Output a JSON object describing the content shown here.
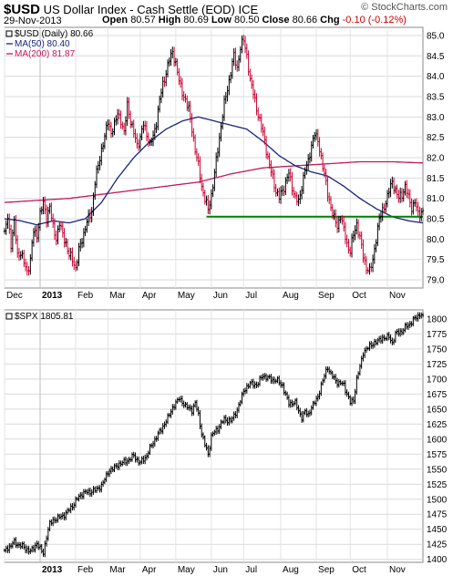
{
  "header": {
    "symbol": "$USD",
    "description": "US Dollar Index - Cash Settle (EOD) ICE",
    "brand": "© StockCharts.com",
    "date": "29-Nov-2013",
    "open_label": "Open",
    "open": "80.57",
    "high_label": "High",
    "high": "80.69",
    "low_label": "Low",
    "low": "80.50",
    "close_label": "Close",
    "close": "80.66",
    "chg_label": "Chg",
    "chg": "-0.10 (-0.12%)"
  },
  "chart_data": [
    {
      "type": "line",
      "legend": {
        "price": "$USD (Daily) 80.66",
        "ma50": "MA(50) 80.40",
        "ma200": "MA(200) 81.87"
      },
      "colors": {
        "price": "#000000",
        "price_down": "#cc0033",
        "ma50": "#1a237e",
        "ma200": "#c2185b",
        "support": "#008000"
      },
      "ylim": [
        78.8,
        85.2
      ],
      "yticks": [
        "85.0",
        "84.5",
        "84.0",
        "83.5",
        "83.0",
        "82.5",
        "82.0",
        "81.5",
        "81.0",
        "80.5",
        "80.0",
        "79.5",
        "79.0"
      ],
      "xlabels": [
        "Dec",
        "2013",
        "Feb",
        "Mar",
        "Apr",
        "May",
        "Jun",
        "Jul",
        "Aug",
        "Sep",
        "Oct",
        "Nov"
      ],
      "month_ticks": [
        0,
        22,
        44,
        64,
        84,
        106,
        128,
        148,
        171,
        193,
        214,
        237
      ],
      "support_level": 80.55,
      "support_range": [
        125,
        259
      ],
      "anchors": [
        [
          0,
          80.2
        ],
        [
          2,
          80.5
        ],
        [
          4,
          79.9
        ],
        [
          6,
          80.4
        ],
        [
          8,
          79.6
        ],
        [
          10,
          79.7
        ],
        [
          12,
          79.4
        ],
        [
          14,
          79.2
        ],
        [
          16,
          79.5
        ],
        [
          18,
          80.2
        ],
        [
          20,
          80.1
        ],
        [
          22,
          80.6
        ],
        [
          24,
          80.9
        ],
        [
          26,
          80.5
        ],
        [
          28,
          80.8
        ],
        [
          30,
          80.3
        ],
        [
          32,
          80.0
        ],
        [
          34,
          80.4
        ],
        [
          36,
          80.1
        ],
        [
          38,
          79.9
        ],
        [
          40,
          79.6
        ],
        [
          42,
          79.5
        ],
        [
          44,
          79.3
        ],
        [
          46,
          79.7
        ],
        [
          48,
          80.0
        ],
        [
          50,
          80.3
        ],
        [
          52,
          80.5
        ],
        [
          54,
          80.7
        ],
        [
          56,
          81.4
        ],
        [
          58,
          81.8
        ],
        [
          60,
          82.2
        ],
        [
          62,
          82.5
        ],
        [
          64,
          82.9
        ],
        [
          66,
          82.6
        ],
        [
          68,
          82.8
        ],
        [
          70,
          83.1
        ],
        [
          72,
          82.9
        ],
        [
          74,
          82.6
        ],
        [
          76,
          83.3
        ],
        [
          78,
          82.9
        ],
        [
          80,
          82.6
        ],
        [
          82,
          82.3
        ],
        [
          84,
          82.5
        ],
        [
          86,
          82.8
        ],
        [
          88,
          82.6
        ],
        [
          90,
          82.3
        ],
        [
          92,
          82.5
        ],
        [
          94,
          82.9
        ],
        [
          96,
          83.4
        ],
        [
          98,
          83.8
        ],
        [
          100,
          84.1
        ],
        [
          102,
          84.4
        ],
        [
          104,
          84.6
        ],
        [
          106,
          84.3
        ],
        [
          108,
          83.9
        ],
        [
          110,
          83.6
        ],
        [
          112,
          83.4
        ],
        [
          114,
          83.2
        ],
        [
          116,
          82.7
        ],
        [
          118,
          82.2
        ],
        [
          120,
          81.8
        ],
        [
          122,
          81.3
        ],
        [
          124,
          81.0
        ],
        [
          126,
          80.7
        ],
        [
          128,
          81.1
        ],
        [
          130,
          81.6
        ],
        [
          132,
          82.2
        ],
        [
          134,
          82.8
        ],
        [
          136,
          83.3
        ],
        [
          138,
          83.7
        ],
        [
          140,
          84.1
        ],
        [
          142,
          84.5
        ],
        [
          144,
          84.2
        ],
        [
          146,
          84.7
        ],
        [
          148,
          84.9
        ],
        [
          150,
          84.5
        ],
        [
          152,
          83.9
        ],
        [
          154,
          83.6
        ],
        [
          156,
          83.2
        ],
        [
          158,
          82.9
        ],
        [
          160,
          82.6
        ],
        [
          162,
          82.2
        ],
        [
          164,
          81.8
        ],
        [
          166,
          81.5
        ],
        [
          168,
          81.2
        ],
        [
          170,
          81.0
        ],
        [
          172,
          81.2
        ],
        [
          174,
          81.4
        ],
        [
          176,
          81.6
        ],
        [
          178,
          81.3
        ],
        [
          180,
          81.0
        ],
        [
          182,
          80.9
        ],
        [
          184,
          81.3
        ],
        [
          186,
          81.7
        ],
        [
          188,
          81.9
        ],
        [
          190,
          82.3
        ],
        [
          192,
          82.6
        ],
        [
          194,
          82.4
        ],
        [
          196,
          82.0
        ],
        [
          198,
          81.6
        ],
        [
          200,
          81.1
        ],
        [
          202,
          80.8
        ],
        [
          204,
          80.5
        ],
        [
          206,
          80.3
        ],
        [
          208,
          80.6
        ],
        [
          210,
          80.2
        ],
        [
          212,
          79.9
        ],
        [
          214,
          79.7
        ],
        [
          216,
          80.1
        ],
        [
          218,
          80.4
        ],
        [
          220,
          80.0
        ],
        [
          222,
          79.6
        ],
        [
          224,
          79.3
        ],
        [
          226,
          79.2
        ],
        [
          228,
          79.5
        ],
        [
          230,
          80.0
        ],
        [
          232,
          80.5
        ],
        [
          234,
          80.7
        ],
        [
          236,
          80.9
        ],
        [
          238,
          81.2
        ],
        [
          240,
          81.4
        ],
        [
          242,
          81.2
        ],
        [
          244,
          81.0
        ],
        [
          246,
          81.1
        ],
        [
          248,
          81.3
        ],
        [
          250,
          81.0
        ],
        [
          252,
          80.8
        ],
        [
          254,
          80.9
        ],
        [
          256,
          80.6
        ],
        [
          258,
          80.7
        ]
      ],
      "ma50_anchors": [
        [
          0,
          80.5
        ],
        [
          10,
          80.45
        ],
        [
          20,
          80.35
        ],
        [
          30,
          80.45
        ],
        [
          40,
          80.4
        ],
        [
          50,
          80.5
        ],
        [
          60,
          80.9
        ],
        [
          70,
          81.5
        ],
        [
          80,
          82.0
        ],
        [
          90,
          82.4
        ],
        [
          100,
          82.7
        ],
        [
          110,
          82.9
        ],
        [
          120,
          83.0
        ],
        [
          130,
          82.9
        ],
        [
          140,
          82.8
        ],
        [
          150,
          82.7
        ],
        [
          160,
          82.4
        ],
        [
          170,
          82.05
        ],
        [
          180,
          81.8
        ],
        [
          190,
          81.65
        ],
        [
          200,
          81.55
        ],
        [
          210,
          81.3
        ],
        [
          220,
          81.0
        ],
        [
          230,
          80.75
        ],
        [
          240,
          80.55
        ],
        [
          250,
          80.45
        ],
        [
          259,
          80.4
        ]
      ],
      "ma200_anchors": [
        [
          0,
          80.9
        ],
        [
          20,
          80.95
        ],
        [
          40,
          81.0
        ],
        [
          60,
          81.1
        ],
        [
          80,
          81.2
        ],
        [
          100,
          81.3
        ],
        [
          120,
          81.4
        ],
        [
          140,
          81.6
        ],
        [
          160,
          81.75
        ],
        [
          180,
          81.8
        ],
        [
          200,
          81.85
        ],
        [
          220,
          81.9
        ],
        [
          240,
          81.9
        ],
        [
          259,
          81.87
        ]
      ]
    },
    {
      "type": "line",
      "legend": {
        "price": "$SPX 1805.81"
      },
      "colors": {
        "price": "#000000",
        "price_down": "#000000"
      },
      "ylim": [
        1395,
        1815
      ],
      "yticks": [
        "1800",
        "1775",
        "1750",
        "1725",
        "1700",
        "1675",
        "1650",
        "1625",
        "1600",
        "1575",
        "1550",
        "1525",
        "1500",
        "1475",
        "1450",
        "1425",
        "1400"
      ],
      "xlabels": [
        "2013",
        "Feb",
        "Mar",
        "Apr",
        "May",
        "Jun",
        "Jul",
        "Aug",
        "Sep",
        "Oct",
        "Nov"
      ],
      "anchors": [
        [
          0,
          1415
        ],
        [
          6,
          1428
        ],
        [
          12,
          1420
        ],
        [
          16,
          1413
        ],
        [
          20,
          1426
        ],
        [
          22,
          1418
        ],
        [
          24,
          1410
        ],
        [
          26,
          1438
        ],
        [
          28,
          1460
        ],
        [
          32,
          1468
        ],
        [
          36,
          1472
        ],
        [
          40,
          1482
        ],
        [
          44,
          1497
        ],
        [
          48,
          1510
        ],
        [
          52,
          1512
        ],
        [
          56,
          1515
        ],
        [
          60,
          1522
        ],
        [
          64,
          1545
        ],
        [
          68,
          1553
        ],
        [
          72,
          1560
        ],
        [
          76,
          1564
        ],
        [
          80,
          1572
        ],
        [
          84,
          1560
        ],
        [
          88,
          1573
        ],
        [
          92,
          1595
        ],
        [
          96,
          1612
        ],
        [
          100,
          1630
        ],
        [
          104,
          1652
        ],
        [
          108,
          1668
        ],
        [
          112,
          1655
        ],
        [
          116,
          1648
        ],
        [
          118,
          1660
        ],
        [
          120,
          1640
        ],
        [
          122,
          1610
        ],
        [
          124,
          1590
        ],
        [
          126,
          1575
        ],
        [
          128,
          1605
        ],
        [
          132,
          1618
        ],
        [
          136,
          1633
        ],
        [
          140,
          1630
        ],
        [
          144,
          1648
        ],
        [
          148,
          1680
        ],
        [
          152,
          1693
        ],
        [
          156,
          1690
        ],
        [
          160,
          1706
        ],
        [
          164,
          1700
        ],
        [
          168,
          1698
        ],
        [
          172,
          1690
        ],
        [
          174,
          1672
        ],
        [
          176,
          1660
        ],
        [
          180,
          1660
        ],
        [
          184,
          1635
        ],
        [
          186,
          1646
        ],
        [
          188,
          1640
        ],
        [
          190,
          1653
        ],
        [
          194,
          1670
        ],
        [
          196,
          1690
        ],
        [
          198,
          1705
        ],
        [
          200,
          1720
        ],
        [
          202,
          1708
        ],
        [
          204,
          1700
        ],
        [
          206,
          1695
        ],
        [
          210,
          1690
        ],
        [
          212,
          1676
        ],
        [
          214,
          1660
        ],
        [
          216,
          1665
        ],
        [
          218,
          1700
        ],
        [
          220,
          1720
        ],
        [
          222,
          1744
        ],
        [
          226,
          1755
        ],
        [
          230,
          1762
        ],
        [
          234,
          1768
        ],
        [
          238,
          1770
        ],
        [
          240,
          1760
        ],
        [
          242,
          1775
        ],
        [
          246,
          1780
        ],
        [
          250,
          1790
        ],
        [
          254,
          1800
        ],
        [
          257,
          1808
        ],
        [
          259,
          1805.81
        ]
      ]
    }
  ]
}
